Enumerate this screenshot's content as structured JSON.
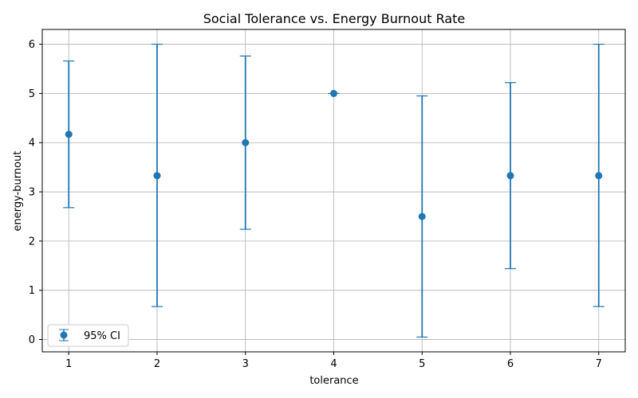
{
  "chart_data": {
    "type": "scatter",
    "title": "Social Tolerance vs. Energy Burnout Rate",
    "xlabel": "tolerance",
    "ylabel": "energy-burnout",
    "x": [
      1,
      2,
      3,
      4,
      5,
      6,
      7
    ],
    "series": [
      {
        "name": "95% CI",
        "color": "#1f77b4",
        "values": [
          4.17,
          3.33,
          4.0,
          5.0,
          2.5,
          3.33,
          3.33
        ],
        "ci_lower": [
          2.68,
          0.67,
          2.24,
          5.0,
          0.05,
          1.44,
          0.67
        ],
        "ci_upper": [
          5.66,
          6.0,
          5.76,
          5.0,
          4.95,
          5.22,
          6.0
        ]
      }
    ],
    "xlim": [
      0.7,
      7.3
    ],
    "ylim": [
      -0.25,
      6.3
    ],
    "xticks": [
      "1",
      "2",
      "3",
      "4",
      "5",
      "6",
      "7"
    ],
    "yticks": [
      "0",
      "1",
      "2",
      "3",
      "4",
      "5",
      "6"
    ],
    "grid": true,
    "legend_position": "lower-left"
  }
}
